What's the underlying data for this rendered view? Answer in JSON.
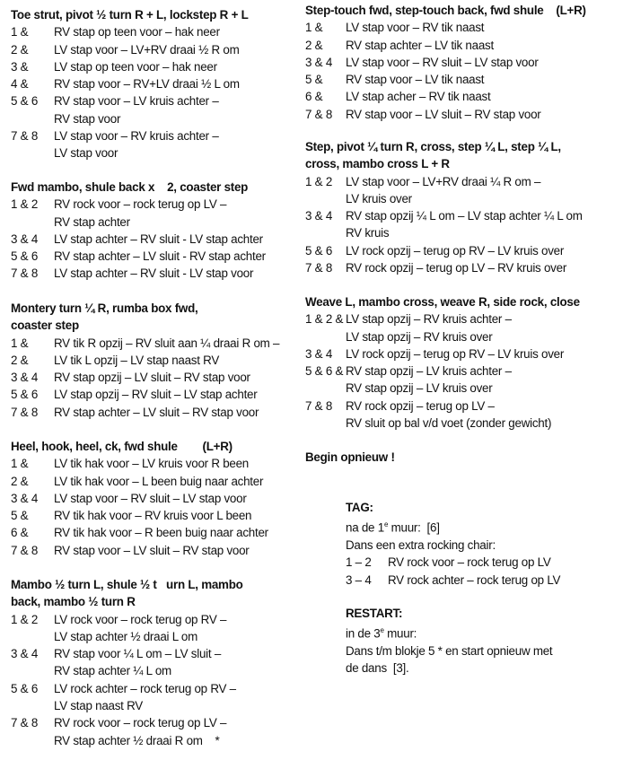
{
  "left_sections": [
    {
      "heading": [
        "Toe strut, pivot ½ turn R + L, lockstep R + L"
      ],
      "rows": [
        {
          "count": "1 &",
          "lines": [
            "RV stap op teen voor – hak neer"
          ]
        },
        {
          "count": "2 &",
          "lines": [
            "LV stap voor – LV+RV draai ½ R om"
          ]
        },
        {
          "count": "3 &",
          "lines": [
            "LV stap op teen voor – hak neer"
          ]
        },
        {
          "count": "4 &",
          "lines": [
            "RV stap voor – RV+LV draai ½ L om"
          ]
        },
        {
          "count": "5 & 6",
          "lines": [
            "RV stap voor – LV kruis achter –",
            "RV stap voor"
          ]
        },
        {
          "count": "7 & 8",
          "lines": [
            "LV stap voor – RV kruis achter –",
            "LV stap voor"
          ]
        }
      ]
    },
    {
      "heading": [
        "Fwd mambo, shule back x    2, coaster step"
      ],
      "rows": [
        {
          "count": "1 & 2",
          "lines": [
            "RV rock voor – rock terug op LV –",
            "RV stap achter"
          ]
        },
        {
          "count": "3 & 4",
          "lines": [
            "LV stap achter – RV sluit - LV stap achter"
          ]
        },
        {
          "count": "5 & 6",
          "lines": [
            "RV stap achter – LV sluit - RV stap achter"
          ]
        },
        {
          "count": "7 & 8",
          "lines": [
            "LV stap achter – RV sluit - LV stap voor"
          ]
        }
      ]
    },
    {
      "heading": [
        "Montery turn ¼ R, rumba box fwd,",
        "coaster step"
      ],
      "rows": [
        {
          "count": "1 &",
          "lines": [
            "RV tik R opzij – RV sluit aan ¼ draai R om –"
          ]
        },
        {
          "count": "2 &",
          "lines": [
            "LV tik L opzij – LV stap naast RV"
          ]
        },
        {
          "count": "3 & 4",
          "lines": [
            "RV stap opzij – LV sluit – RV stap voor"
          ]
        },
        {
          "count": "5 & 6",
          "lines": [
            "LV stap opzij – RV sluit – LV stap achter"
          ]
        },
        {
          "count": "7 & 8",
          "lines": [
            "RV stap achter – LV sluit – RV stap voor"
          ]
        }
      ]
    },
    {
      "heading": [
        "Heel, hook, heel, ck, fwd shule        (L+R)"
      ],
      "rows": [
        {
          "count": "1 &",
          "lines": [
            "LV tik hak voor – LV kruis voor R been"
          ]
        },
        {
          "count": "2 &",
          "lines": [
            "LV tik hak voor – L been buig naar achter"
          ]
        },
        {
          "count": "3 & 4",
          "lines": [
            "LV stap voor – RV sluit – LV stap voor"
          ]
        },
        {
          "count": "5 &",
          "lines": [
            "RV tik hak voor – RV kruis voor L been"
          ]
        },
        {
          "count": "6 &",
          "lines": [
            "RV tik hak voor – R been buig naar achter"
          ]
        },
        {
          "count": "7 & 8",
          "lines": [
            "RV stap voor – LV sluit – RV stap voor"
          ]
        }
      ]
    },
    {
      "heading": [
        "Mambo ½ turn L, shule ½ t   urn L, mambo",
        "back, mambo ½ turn R"
      ],
      "rows": [
        {
          "count": "1 & 2",
          "lines": [
            "LV rock voor – rock terug op RV –",
            "LV stap achter ½ draai L om"
          ]
        },
        {
          "count": "3 & 4",
          "lines": [
            "RV stap voor ¼ L om – LV sluit –",
            "RV stap achter ¼ L om"
          ]
        },
        {
          "count": "5 & 6",
          "lines": [
            "LV rock achter – rock terug op RV –",
            "LV stap naast RV"
          ]
        },
        {
          "count": "7 & 8",
          "lines": [
            "RV rock voor – rock terug op LV –",
            "RV stap achter ½ draai R om    *"
          ]
        }
      ]
    }
  ],
  "right_sections": [
    {
      "heading": [
        "Step-touch fwd, step-touch back, fwd shule    (L+R)"
      ],
      "rows": [
        {
          "count": "1 &",
          "lines": [
            "LV stap voor – RV tik naast"
          ]
        },
        {
          "count": "2 &",
          "lines": [
            "RV stap achter – LV tik naast"
          ]
        },
        {
          "count": "3 & 4",
          "lines": [
            "LV stap voor – RV sluit – LV stap voor"
          ]
        },
        {
          "count": "5 &",
          "lines": [
            "RV stap voor – LV tik naast"
          ]
        },
        {
          "count": "6 &",
          "lines": [
            "LV stap acher – RV tik naast"
          ]
        },
        {
          "count": "7 & 8",
          "lines": [
            "RV stap voor – LV sluit – RV stap voor"
          ]
        }
      ]
    },
    {
      "heading": [
        "Step, pivot ¼ turn R, cross, step ¼ L, step ¼ L,",
        "cross, mambo cross L + R"
      ],
      "rows": [
        {
          "count": "1 & 2",
          "lines": [
            "LV stap voor – LV+RV draai ¼ R om –",
            "LV kruis over"
          ]
        },
        {
          "count": "3 & 4",
          "lines": [
            "RV stap opzij ¼ L om – LV stap achter ¼ L om",
            "RV kruis"
          ]
        },
        {
          "count": "5 & 6",
          "lines": [
            "LV rock opzij – terug op RV – LV kruis over"
          ]
        },
        {
          "count": "7 & 8",
          "lines": [
            "RV rock opzij – terug op LV – RV kruis over"
          ]
        }
      ]
    },
    {
      "heading": [
        "Weave L, mambo cross, weave R, side rock, close"
      ],
      "rows": [
        {
          "count": "1 & 2 &",
          "lines": [
            "LV stap opzij – RV kruis achter –",
            "LV stap opzij – RV kruis over"
          ]
        },
        {
          "count": "3 & 4",
          "lines": [
            "LV rock opzij – terug op RV – LV kruis over"
          ]
        },
        {
          "count": "5 & 6 &",
          "lines": [
            "RV stap opzij – LV kruis achter –",
            "RV stap opzij – LV kruis over"
          ]
        },
        {
          "count": "7 & 8",
          "lines": [
            "RV rock opzij – terug op LV –",
            "RV sluit op bal v/d voet (zonder gewicht)"
          ]
        }
      ]
    }
  ],
  "begin": "Begin opnieuw !",
  "tag": {
    "heading": "TAG:",
    "line1_pre": "na de 1",
    "line1_sup": "e",
    "line1_post": " muur:  [6]",
    "line2": "Dans een extra rocking chair:",
    "rows": [
      {
        "count": "1 – 2",
        "text": "RV rock voor – rock terug op LV"
      },
      {
        "count": "3 – 4",
        "text": "RV rock achter – rock terug op LV"
      }
    ]
  },
  "restart": {
    "heading": "RESTART:",
    "line1_pre": "in de 3",
    "line1_sup": "e",
    "line1_post": " muur:",
    "line2": "Dans t/m blokje 5 * en start opnieuw met",
    "line3": "de dans  [3]."
  }
}
